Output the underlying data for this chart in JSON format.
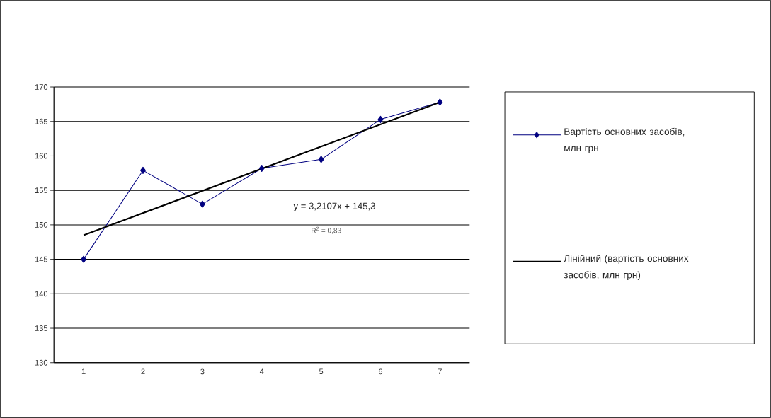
{
  "chart_data": {
    "type": "line",
    "categories": [
      "1",
      "2",
      "3",
      "4",
      "5",
      "6",
      "7"
    ],
    "series": [
      {
        "name": "Вартість основних засобів, млн грн",
        "color": "#000080",
        "marker": "diamond",
        "values": [
          145,
          157.9,
          153,
          158.2,
          159.5,
          165.3,
          167.8
        ]
      },
      {
        "name": "Лінійний (вартість основних засобів, млн грн)",
        "color": "#000000",
        "marker": "none",
        "x": [
          "1",
          "7"
        ],
        "values": [
          148.5,
          167.8
        ]
      }
    ],
    "ylim": [
      130,
      170
    ],
    "yticks": [
      130,
      135,
      140,
      145,
      150,
      155,
      160,
      165,
      170
    ],
    "grid": "y",
    "legend": "right",
    "annotations": [
      "y = 3,2107x + 145,3",
      "R$^{2}$ = 0,83"
    ]
  }
}
